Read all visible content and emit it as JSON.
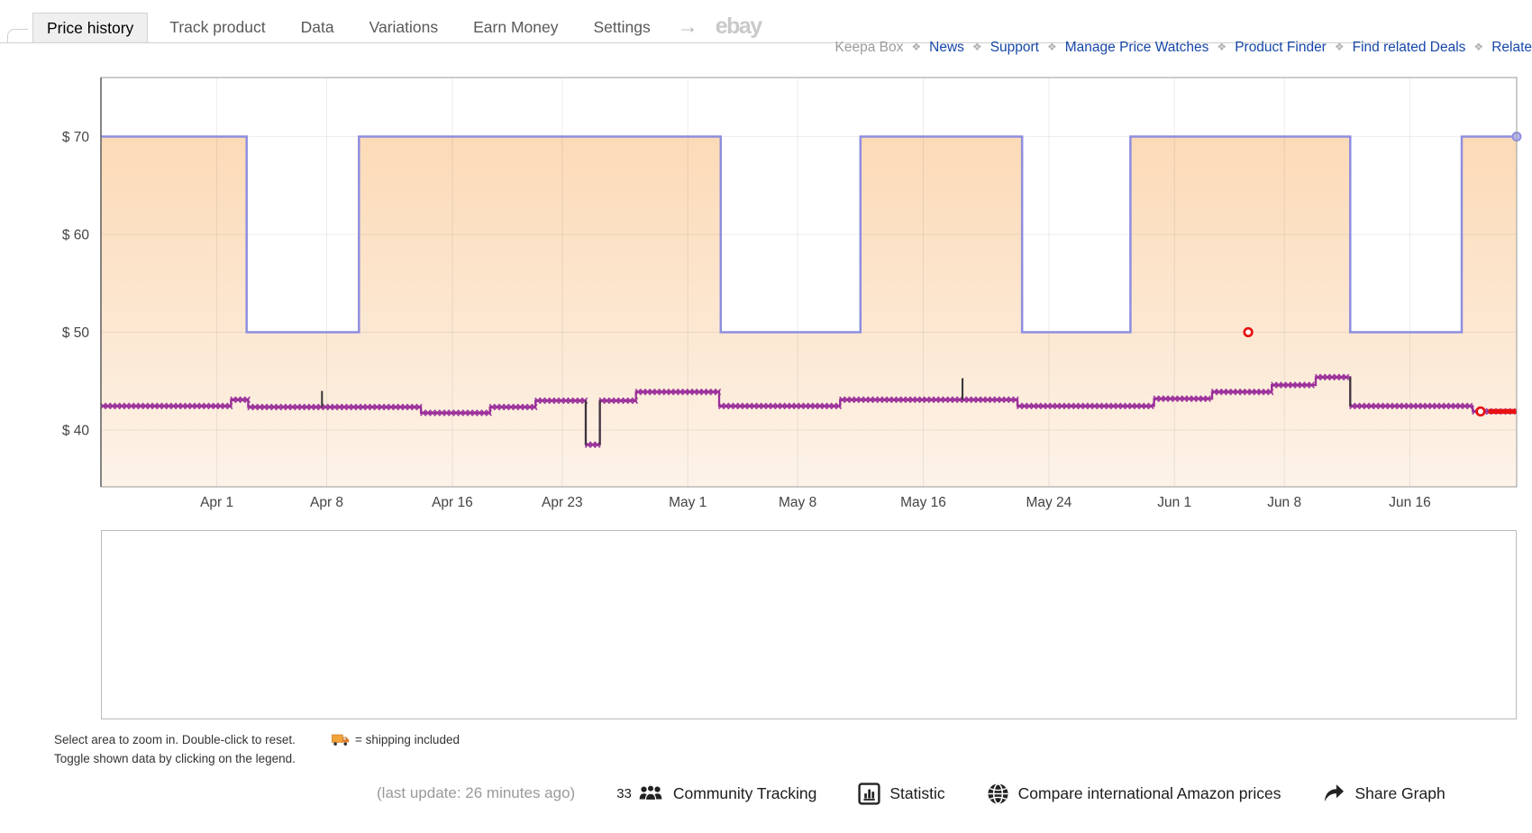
{
  "tabs": {
    "items": [
      {
        "label": "Price history",
        "active": true
      },
      {
        "label": "Track product",
        "active": false
      },
      {
        "label": "Data",
        "active": false
      },
      {
        "label": "Variations",
        "active": false
      },
      {
        "label": "Earn Money",
        "active": false
      },
      {
        "label": "Settings",
        "active": false
      }
    ],
    "arrow": "→",
    "ebay_label": "ebay"
  },
  "links_row": {
    "muted_label": "Keepa Box",
    "separator": "❖",
    "links": [
      "News",
      "Support",
      "Manage Price Watches",
      "Product Finder",
      "Find related Deals",
      "Relate"
    ]
  },
  "chart_data": {
    "type": "line",
    "title": "",
    "description": "Keepa price history graph, ~Mar 25 to Jun 23",
    "x_axis": {
      "tick_labels": [
        "Apr 1",
        "Apr 8",
        "Apr 16",
        "Apr 23",
        "May 1",
        "May 8",
        "May 16",
        "May 24",
        "Jun 1",
        "Jun 8",
        "Jun 16"
      ],
      "tick_days": [
        0,
        7,
        15,
        22,
        30,
        37,
        45,
        53,
        61,
        68,
        76
      ],
      "domain_days": [
        -7.38,
        82.8
      ]
    },
    "y_axis": {
      "tick_labels": [
        "$ 70",
        "$ 60",
        "$ 50",
        "$ 40"
      ],
      "tick_values": [
        70,
        60,
        50,
        40
      ],
      "ylim": [
        34.2,
        76.0
      ]
    },
    "grid": true,
    "series": [
      {
        "name": "amazon-step-area",
        "color": "#8e8ee0",
        "fill_top": "#fbd6ae",
        "fill_bottom": "#fdf3e9",
        "style": "step-area",
        "end_marker": true,
        "points": [
          [
            -7.38,
            70
          ],
          [
            1.9,
            50
          ],
          [
            9.05,
            70
          ],
          [
            32.1,
            50
          ],
          [
            41.0,
            70
          ],
          [
            51.3,
            50
          ],
          [
            58.2,
            70
          ],
          [
            72.2,
            50
          ],
          [
            79.3,
            70
          ]
        ]
      },
      {
        "name": "marketplace-new-x-line",
        "color": "#9a2f9a",
        "style": "step-x-markers",
        "points": [
          [
            -7.38,
            42.45
          ],
          [
            0.9,
            43.1
          ],
          [
            2.0,
            42.35
          ],
          [
            13.0,
            41.75
          ],
          [
            17.4,
            42.35
          ],
          [
            20.3,
            43.0
          ],
          [
            23.5,
            38.5
          ],
          [
            24.4,
            43.0
          ],
          [
            26.7,
            43.9
          ],
          [
            32.0,
            42.45
          ],
          [
            39.7,
            43.1
          ],
          [
            51.0,
            42.45
          ],
          [
            59.7,
            43.2
          ],
          [
            63.4,
            43.9
          ],
          [
            67.2,
            44.6
          ],
          [
            70.0,
            45.4
          ],
          [
            72.2,
            42.45
          ],
          [
            80.0,
            41.9
          ]
        ]
      }
    ],
    "spikes": {
      "color": "#3a3a3a",
      "items": [
        {
          "day": 6.7,
          "from": 42.35,
          "to": 44.0
        },
        {
          "day": 23.5,
          "from": 43.0,
          "to": 38.5
        },
        {
          "day": 24.4,
          "from": 38.5,
          "to": 43.0
        },
        {
          "day": 47.5,
          "from": 43.1,
          "to": 45.3
        },
        {
          "day": 72.2,
          "from": 45.4,
          "to": 42.45
        }
      ]
    },
    "red_markers": {
      "color": "#e81010",
      "rings": [
        {
          "day": 65.7,
          "price": 50.0
        },
        {
          "day": 80.5,
          "price": 41.9
        }
      ],
      "segment": {
        "from_day": 81.0,
        "to_day": 82.8,
        "price": 41.9
      }
    }
  },
  "notes": {
    "line1": "Select area to zoom in. Double-click to reset.",
    "line2": "Toggle shown data by clicking on the legend.",
    "shipping_suffix": "= shipping included"
  },
  "footer": {
    "last_update": "(last update: 26 minutes ago)",
    "community_count": "33",
    "community_label": "Community Tracking",
    "statistic_label": "Statistic",
    "compare_label": "Compare international Amazon prices",
    "share_label": "Share Graph"
  }
}
